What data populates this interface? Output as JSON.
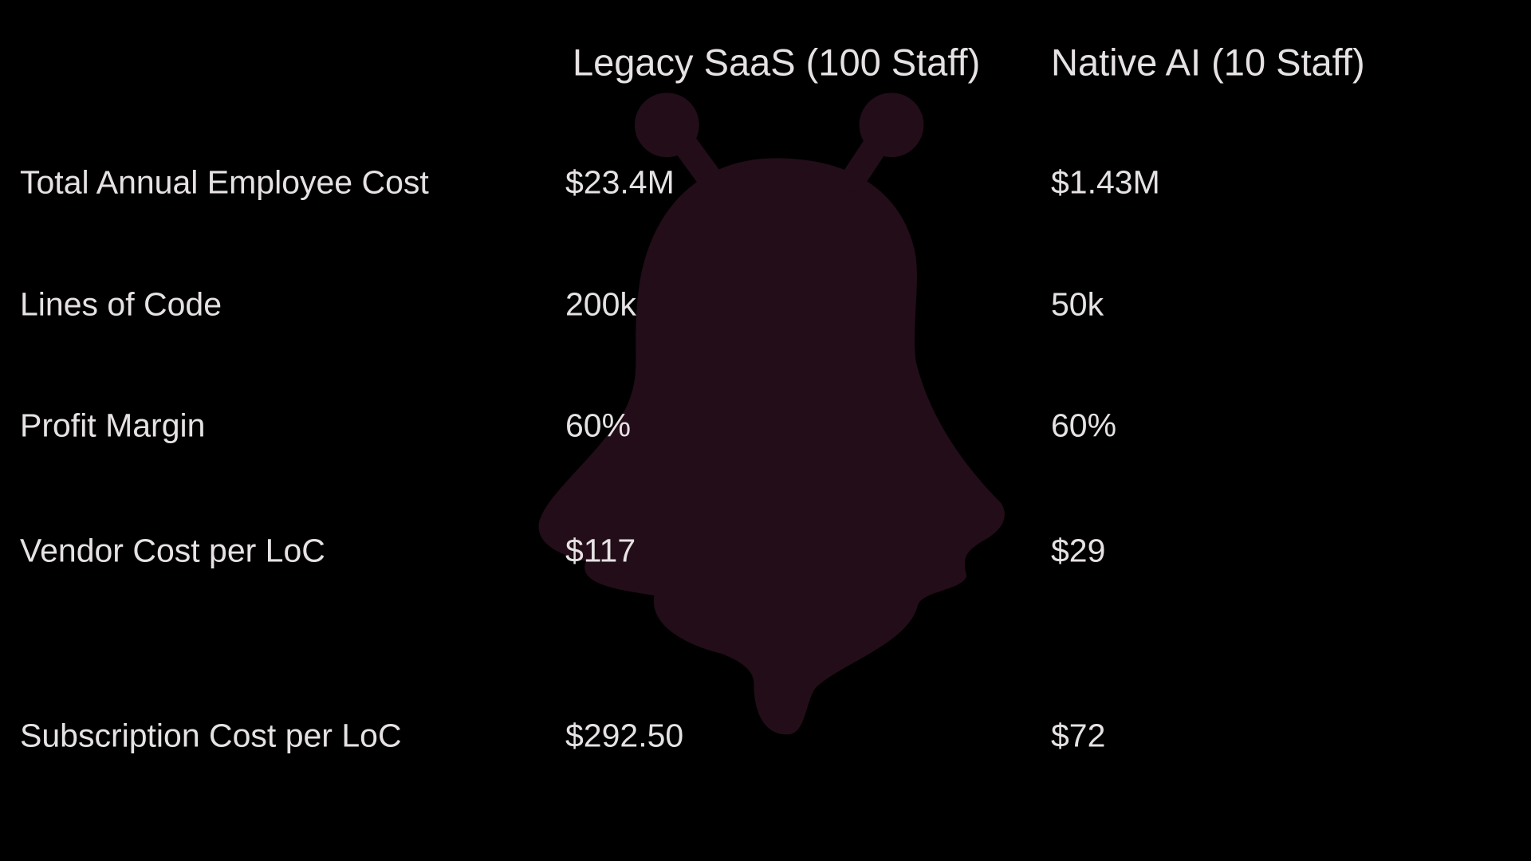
{
  "table": {
    "headers": [
      "Legacy SaaS (100 Staff)",
      "Native AI (10 Staff)"
    ],
    "rows": [
      [
        "Total Annual Employee Cost",
        "$23.4M",
        "$1.43M"
      ],
      [
        "Lines of Code",
        "200k",
        "50k"
      ],
      [
        "Profit Margin",
        "60%",
        "60%"
      ],
      [
        "Vendor Cost per LoC",
        "$117",
        "$29"
      ],
      [
        "Subscription Cost per LoC",
        "$292.50",
        "$72"
      ]
    ]
  }
}
